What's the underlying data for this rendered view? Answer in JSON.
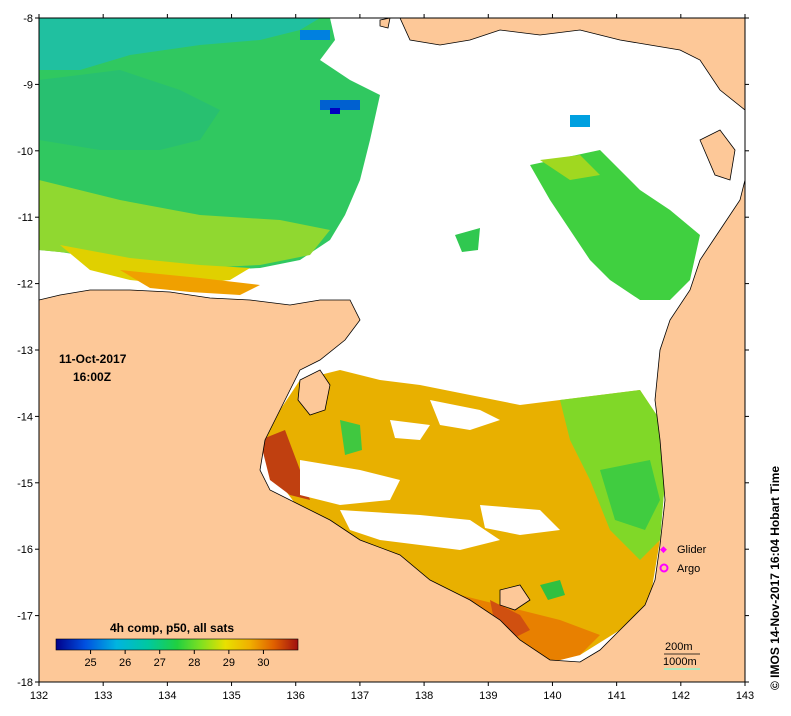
{
  "map": {
    "date": "11-Oct-2017",
    "time": "16:00Z",
    "credit": "©  IMOS 14-Nov-2017 16:04 Hobart Time",
    "colorbar": {
      "title": "4h comp, p50, all sats",
      "ticks": [
        "25",
        "26",
        "27",
        "28",
        "29",
        "30"
      ],
      "range": [
        24,
        31
      ],
      "colors": [
        "#00008b",
        "#0050e0",
        "#00b4e0",
        "#00c8a0",
        "#20d040",
        "#80e020",
        "#e8e000",
        "#f0b000",
        "#e06000",
        "#a01010"
      ]
    },
    "legend": {
      "glider": "Glider",
      "argo": "Argo",
      "glider_color": "#ff00ff",
      "argo_color": "#ff00ff"
    },
    "isobaths": {
      "d200": "200m",
      "d1000": "1000m",
      "d1000_color": "#7fffd4"
    },
    "axes": {
      "x": {
        "min": 132,
        "max": 143,
        "ticks": [
          "132",
          "133",
          "134",
          "135",
          "136",
          "137",
          "138",
          "139",
          "140",
          "141",
          "142",
          "143"
        ]
      },
      "y": {
        "min": -18,
        "max": -8,
        "ticks": [
          "-8",
          "-9",
          "-10",
          "-11",
          "-12",
          "-13",
          "-14",
          "-15",
          "-16",
          "-17",
          "-18"
        ]
      }
    },
    "colors": {
      "land": "#fdc898",
      "cloud": "#ffffff",
      "coast": "#000000"
    }
  }
}
